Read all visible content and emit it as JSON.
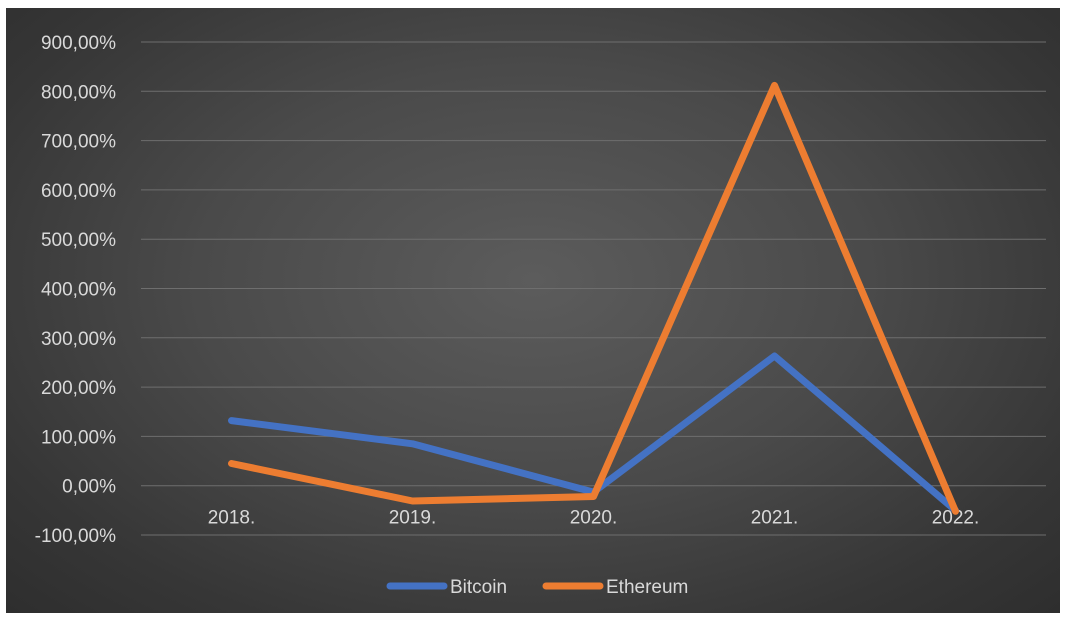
{
  "chart_data": {
    "type": "line",
    "categories": [
      "2018.",
      "2019.",
      "2020.",
      "2021.",
      "2022."
    ],
    "series": [
      {
        "name": "Bitcoin",
        "color": "#4472C4",
        "values": [
          132,
          85,
          -13,
          263,
          -50
        ]
      },
      {
        "name": "Ethereum",
        "color": "#ED7D31",
        "values": [
          45,
          -31,
          -22,
          812,
          -52
        ]
      }
    ],
    "y_ticks": [
      "-100,00%",
      "0,00%",
      "100,00%",
      "200,00%",
      "300,00%",
      "400,00%",
      "500,00%",
      "600,00%",
      "700,00%",
      "800,00%",
      "900,00%"
    ],
    "ylim": [
      -100,
      900
    ],
    "y_unit": "%",
    "grid": true,
    "legend_position": "bottom",
    "background": "#4a4a4a"
  }
}
